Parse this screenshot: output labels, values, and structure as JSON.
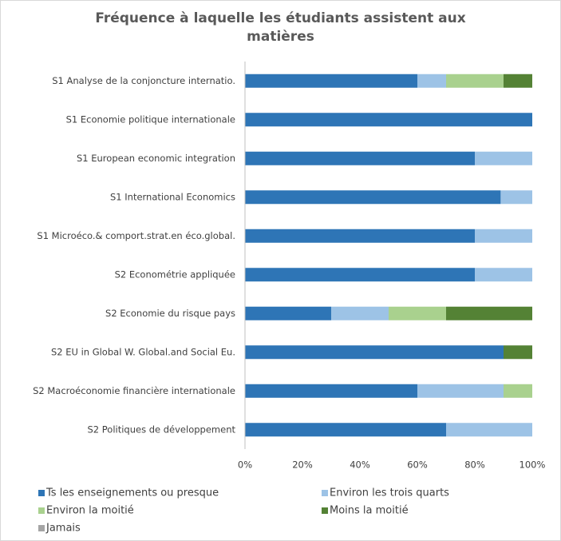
{
  "chart_data": {
    "type": "stacked-barh",
    "title": "Fréquence à laquelle les étudiants assistent aux matières",
    "categories": [
      "S1 Analyse de la conjoncture internatio.",
      "S1 Economie politique internationale",
      "S1 European economic integration",
      "S1 International Economics",
      "S1 Microéco.& comport.strat.en éco.global.",
      "S2 Econométrie appliquée",
      "S2 Economie du risque pays",
      "S2 EU in Global W. Global.and Social Eu.",
      "S2 Macroéconomie financière internationale",
      "S2 Politiques de développement"
    ],
    "series": [
      {
        "name": "Ts les enseignements ou presque",
        "color": "#2e75b6",
        "values": [
          60,
          100,
          80,
          89,
          80,
          80,
          30,
          90,
          60,
          70
        ]
      },
      {
        "name": "Environ les trois quarts",
        "color": "#9dc3e6",
        "values": [
          10,
          0,
          20,
          11,
          20,
          20,
          20,
          0,
          30,
          30
        ]
      },
      {
        "name": "Environ la moitié",
        "color": "#a9d18e",
        "values": [
          20,
          0,
          0,
          0,
          0,
          0,
          20,
          0,
          10,
          0
        ]
      },
      {
        "name": "Moins la moitié",
        "color": "#548235",
        "values": [
          10,
          0,
          0,
          0,
          0,
          0,
          30,
          10,
          0,
          0
        ]
      },
      {
        "name": "Jamais",
        "color": "#a5a5a5",
        "values": [
          0,
          0,
          0,
          0,
          0,
          0,
          0,
          0,
          0,
          0
        ]
      }
    ],
    "xlim": [
      0,
      100
    ],
    "xticks": [
      {
        "value": 0,
        "label": "0%"
      },
      {
        "value": 20,
        "label": "20%"
      },
      {
        "value": 40,
        "label": "40%"
      },
      {
        "value": 60,
        "label": "60%"
      },
      {
        "value": 80,
        "label": "80%"
      },
      {
        "value": 100,
        "label": "100%"
      }
    ],
    "grid": false
  }
}
